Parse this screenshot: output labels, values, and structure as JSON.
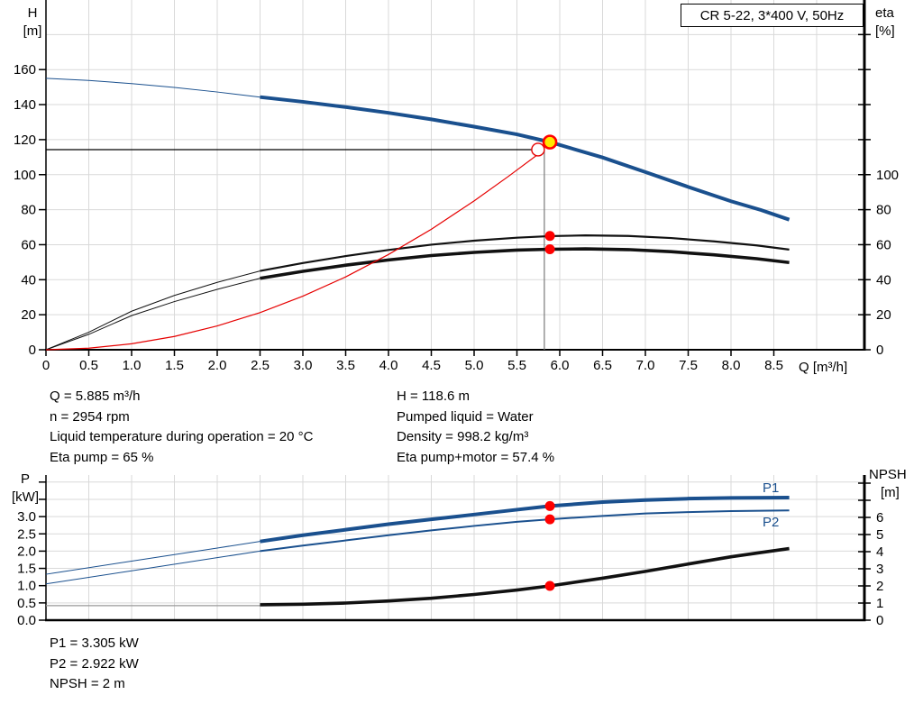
{
  "header": {
    "title_box": "CR 5-22, 3*400 V, 50Hz"
  },
  "colors": {
    "curve_blue": "#1a508e",
    "curve_black": "#111111",
    "curve_red": "#e60000",
    "dot_red": "#ff0000",
    "dot_yellow_fill": "#ffe800",
    "gridline": "#d9d9d9",
    "axis": "#000000",
    "guide_gray": "#7a7a7a",
    "npsh_flat_gray": "#999999"
  },
  "top_chart": {
    "y_left_title": "H",
    "y_left_unit": "[m]",
    "y_right_title": "eta",
    "y_right_unit": "[%]",
    "x_axis_label": "Q [m³/h]",
    "x_tick_labels": [
      "0",
      "0.5",
      "1.0",
      "1.5",
      "2.0",
      "2.5",
      "3.0",
      "3.5",
      "4.0",
      "4.5",
      "5.0",
      "5.5",
      "6.0",
      "6.5",
      "7.0",
      "7.5",
      "8.0",
      "8.5"
    ],
    "y_left_tick_labels": [
      "0",
      "20",
      "40",
      "60",
      "80",
      "100",
      "120",
      "140",
      "160"
    ],
    "y_right_tick_labels": [
      "0",
      "20",
      "40",
      "60",
      "80",
      "100"
    ]
  },
  "bottom_chart": {
    "y_left_title": "P",
    "y_left_unit": "[kW]",
    "y_right_title": "NPSH",
    "y_right_unit": "[m]",
    "y_left_tick_labels": [
      "0.0",
      "0.5",
      "1.0",
      "1.5",
      "2.0",
      "2.5",
      "3.0"
    ],
    "y_right_tick_labels": [
      "0",
      "1",
      "2",
      "3",
      "4",
      "5",
      "6"
    ],
    "p1_label": "P1",
    "p2_label": "P2"
  },
  "info_block": {
    "left": [
      "Q = 5.885 m³/h",
      "n = 2954 rpm",
      "Liquid temperature during operation = 20 °C",
      "Eta pump = 65 %"
    ],
    "right": [
      "H = 118.6 m",
      "Pumped liquid = Water",
      "Density = 998.2 kg/m³",
      "Eta pump+motor = 57.4 %"
    ]
  },
  "footer_block": {
    "lines": [
      "P1 = 3.305 kW",
      "P2 = 2.922 kW",
      "NPSH = 2 m"
    ]
  },
  "chart_data": [
    {
      "type": "line",
      "title": "CR 5-22, 3*400 V, 50Hz — H/Q and efficiency curves",
      "xlabel": "Q [m³/h]",
      "ylabel_left": "H [m]",
      "ylabel_right": "eta [%]",
      "x_range": [
        0,
        9.56
      ],
      "y_left_range": [
        0,
        200
      ],
      "y_right_labeled_range": [
        0,
        100
      ],
      "grid": true,
      "series": [
        {
          "name": "hq-curve-preview",
          "axis": "left",
          "color_key": "curve_blue",
          "width": 1,
          "points": [
            [
              0,
              155
            ],
            [
              0.5,
              153.8
            ],
            [
              1,
              152
            ],
            [
              1.5,
              149.8
            ],
            [
              2,
              147.2
            ],
            [
              2.5,
              144.3
            ]
          ]
        },
        {
          "name": "hq-curve",
          "axis": "left",
          "color_key": "curve_blue",
          "width": 4,
          "points": [
            [
              2.5,
              144.3
            ],
            [
              3,
              141.6
            ],
            [
              3.5,
              138.6
            ],
            [
              4,
              135.3
            ],
            [
              4.5,
              131.6
            ],
            [
              5,
              127.4
            ],
            [
              5.5,
              123
            ],
            [
              5.885,
              118.6
            ],
            [
              6.5,
              109.8
            ],
            [
              7,
              101.5
            ],
            [
              7.5,
              93
            ],
            [
              8,
              84.8
            ],
            [
              8.35,
              79.8
            ],
            [
              8.68,
              74.3
            ]
          ]
        },
        {
          "name": "eta-pump-preview",
          "axis": "right",
          "color_key": "curve_black",
          "width": 1,
          "points": [
            [
              0,
              0
            ],
            [
              0.5,
              10
            ],
            [
              1,
              22
            ],
            [
              1.5,
              31
            ],
            [
              2,
              38.5
            ],
            [
              2.5,
              45
            ]
          ]
        },
        {
          "name": "eta-pump",
          "axis": "right",
          "color_key": "curve_black",
          "width": 2.2,
          "points": [
            [
              2.5,
              45
            ],
            [
              3,
              49.5
            ],
            [
              3.5,
              53.5
            ],
            [
              4,
              57
            ],
            [
              4.5,
              60
            ],
            [
              5,
              62.3
            ],
            [
              5.5,
              64
            ],
            [
              5.885,
              64.9
            ],
            [
              6.3,
              65.3
            ],
            [
              6.8,
              65
            ],
            [
              7.3,
              63.8
            ],
            [
              7.8,
              61.9
            ],
            [
              8.3,
              59.6
            ],
            [
              8.68,
              57.2
            ]
          ]
        },
        {
          "name": "eta-pump-motor-preview",
          "axis": "right",
          "color_key": "curve_black",
          "width": 1,
          "points": [
            [
              0,
              0
            ],
            [
              0.5,
              8.8
            ],
            [
              1,
              19.5
            ],
            [
              1.5,
              27.5
            ],
            [
              2,
              34.5
            ],
            [
              2.5,
              40.8
            ]
          ]
        },
        {
          "name": "eta-pump-motor",
          "axis": "right",
          "color_key": "curve_black",
          "width": 3.6,
          "points": [
            [
              2.5,
              40.8
            ],
            [
              3,
              44.8
            ],
            [
              3.5,
              48.3
            ],
            [
              4,
              51.3
            ],
            [
              4.5,
              53.8
            ],
            [
              5,
              55.6
            ],
            [
              5.5,
              56.9
            ],
            [
              5.885,
              57.4
            ],
            [
              6.3,
              57.6
            ],
            [
              6.8,
              57.2
            ],
            [
              7.3,
              56
            ],
            [
              7.8,
              54.2
            ],
            [
              8.3,
              52
            ],
            [
              8.68,
              49.8
            ]
          ]
        },
        {
          "name": "system-curve",
          "axis": "left",
          "color_key": "curve_red",
          "width": 1.2,
          "points": [
            [
              0,
              0
            ],
            [
              0.5,
              0.9
            ],
            [
              1,
              3.4
            ],
            [
              1.5,
              7.6
            ],
            [
              2,
              13.6
            ],
            [
              2.5,
              21.2
            ],
            [
              3,
              30.6
            ],
            [
              3.5,
              41.6
            ],
            [
              4,
              54.4
            ],
            [
              4.5,
              68.8
            ],
            [
              5,
              85
            ],
            [
              5.4,
              99
            ],
            [
              5.82,
              114.3
            ]
          ]
        }
      ],
      "guides": {
        "h_line_value": 114.3,
        "h_line_q_end": 5.82,
        "v_line_q": 5.82
      },
      "markers": [
        {
          "name": "duty-point-requested",
          "shape": "open-circle",
          "q": 5.82,
          "value": 114.3,
          "axis": "left"
        },
        {
          "name": "operating-point",
          "shape": "yellow-dot",
          "q": 5.885,
          "value": 118.6,
          "axis": "left"
        },
        {
          "name": "eta-pump-point",
          "shape": "red-dot",
          "q": 5.885,
          "value": 65,
          "axis": "right"
        },
        {
          "name": "eta-pump-motor-point",
          "shape": "red-dot",
          "q": 5.885,
          "value": 57.4,
          "axis": "right"
        }
      ]
    },
    {
      "type": "line",
      "title": "Power and NPSH curves",
      "xlabel": "Q [m³/h]",
      "ylabel_left": "P [kW]",
      "ylabel_right": "NPSH [m]",
      "x_range": [
        0,
        9.56
      ],
      "y_left_range": [
        0,
        4.2
      ],
      "y_right_range": [
        0,
        8.4
      ],
      "grid": true,
      "series": [
        {
          "name": "p1-curve-preview",
          "axis": "left",
          "color_key": "curve_blue",
          "width": 1,
          "points": [
            [
              0,
              1.33
            ],
            [
              1,
              1.71
            ],
            [
              2,
              2.09
            ],
            [
              2.5,
              2.28
            ]
          ]
        },
        {
          "name": "p1-curve",
          "axis": "left",
          "color_key": "curve_blue",
          "width": 4,
          "points": [
            [
              2.5,
              2.28
            ],
            [
              3,
              2.46
            ],
            [
              3.5,
              2.62
            ],
            [
              4,
              2.78
            ],
            [
              4.5,
              2.92
            ],
            [
              5,
              3.06
            ],
            [
              5.5,
              3.2
            ],
            [
              5.885,
              3.305
            ],
            [
              6.5,
              3.42
            ],
            [
              7,
              3.48
            ],
            [
              7.5,
              3.52
            ],
            [
              8,
              3.54
            ],
            [
              8.68,
              3.55
            ]
          ]
        },
        {
          "name": "p2-curve-preview",
          "axis": "left",
          "color_key": "curve_blue",
          "width": 1,
          "points": [
            [
              0,
              1.05
            ],
            [
              1,
              1.43
            ],
            [
              2,
              1.81
            ],
            [
              2.5,
              2.0
            ]
          ]
        },
        {
          "name": "p2-curve",
          "axis": "left",
          "color_key": "curve_blue",
          "width": 2,
          "points": [
            [
              2.5,
              2.0
            ],
            [
              3,
              2.16
            ],
            [
              3.5,
              2.31
            ],
            [
              4,
              2.46
            ],
            [
              4.5,
              2.6
            ],
            [
              5,
              2.73
            ],
            [
              5.5,
              2.85
            ],
            [
              5.885,
              2.922
            ],
            [
              6.5,
              3.02
            ],
            [
              7,
              3.09
            ],
            [
              7.5,
              3.13
            ],
            [
              8,
              3.16
            ],
            [
              8.68,
              3.18
            ]
          ]
        },
        {
          "name": "npsh-curve-preview",
          "axis": "right",
          "color_key": "npsh_flat_gray",
          "width": 1.2,
          "points": [
            [
              0,
              0.85
            ],
            [
              2.6,
              0.85
            ]
          ]
        },
        {
          "name": "npsh-curve",
          "axis": "right",
          "color_key": "curve_black",
          "width": 3.6,
          "points": [
            [
              2.5,
              0.9
            ],
            [
              3,
              0.93
            ],
            [
              3.5,
              1.0
            ],
            [
              4,
              1.12
            ],
            [
              4.5,
              1.28
            ],
            [
              5,
              1.5
            ],
            [
              5.5,
              1.76
            ],
            [
              5.885,
              2.0
            ],
            [
              6.5,
              2.45
            ],
            [
              7,
              2.85
            ],
            [
              7.5,
              3.28
            ],
            [
              8,
              3.7
            ],
            [
              8.35,
              3.95
            ],
            [
              8.68,
              4.18
            ]
          ]
        }
      ],
      "markers": [
        {
          "name": "p1-point",
          "shape": "red-dot",
          "q": 5.885,
          "value": 3.305,
          "axis": "left"
        },
        {
          "name": "p2-point",
          "shape": "red-dot",
          "q": 5.885,
          "value": 2.922,
          "axis": "left"
        },
        {
          "name": "npsh-point",
          "shape": "red-dot",
          "q": 5.885,
          "value": 2,
          "axis": "right"
        }
      ]
    }
  ]
}
